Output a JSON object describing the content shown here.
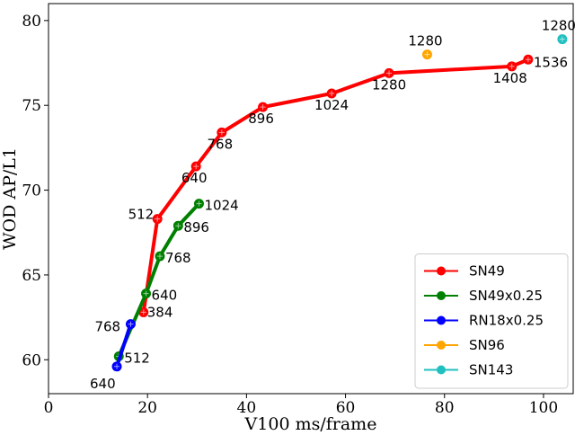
{
  "chart_data": {
    "type": "line",
    "title": "",
    "xlabel": "V100 ms/frame",
    "ylabel": "WOD AP/L1",
    "xlim": [
      0,
      106
    ],
    "ylim": [
      58,
      81
    ],
    "xticks": [
      0,
      20,
      40,
      60,
      80,
      100
    ],
    "yticks": [
      60,
      65,
      70,
      75,
      80
    ],
    "grid": false,
    "legend_position": "bottom-right",
    "series": [
      {
        "name": "SN49",
        "color": "#ff0000",
        "points": [
          {
            "x": 19.2,
            "y": 62.8,
            "label": "384"
          },
          {
            "x": 22.0,
            "y": 68.3,
            "label": "512"
          },
          {
            "x": 29.8,
            "y": 71.4,
            "label": "640"
          },
          {
            "x": 35.0,
            "y": 73.4,
            "label": "768"
          },
          {
            "x": 43.3,
            "y": 74.9,
            "label": "896"
          },
          {
            "x": 57.2,
            "y": 75.7,
            "label": "1024"
          },
          {
            "x": 68.8,
            "y": 76.9,
            "label": "1280"
          },
          {
            "x": 93.6,
            "y": 77.3,
            "label": "1408"
          },
          {
            "x": 96.9,
            "y": 77.7,
            "label": "1536"
          }
        ]
      },
      {
        "name": "SN49x0.25",
        "color": "#008000",
        "points": [
          {
            "x": 14.2,
            "y": 60.2,
            "label": "512"
          },
          {
            "x": 19.7,
            "y": 63.9,
            "label": "640"
          },
          {
            "x": 22.5,
            "y": 66.1,
            "label": "768"
          },
          {
            "x": 26.2,
            "y": 67.9,
            "label": "896"
          },
          {
            "x": 30.4,
            "y": 69.2,
            "label": "1024"
          }
        ]
      },
      {
        "name": "RN18x0.25",
        "color": "#0000ff",
        "points": [
          {
            "x": 13.8,
            "y": 59.6,
            "label": "640"
          },
          {
            "x": 16.6,
            "y": 62.1,
            "label": "768"
          }
        ]
      },
      {
        "name": "SN96",
        "color": "#ffa500",
        "points": [
          {
            "x": 76.5,
            "y": 78.0,
            "label": "1280"
          }
        ]
      },
      {
        "name": "SN143",
        "color": "#20c0c0",
        "points": [
          {
            "x": 103.8,
            "y": 78.9,
            "label": "1280"
          }
        ]
      }
    ]
  }
}
